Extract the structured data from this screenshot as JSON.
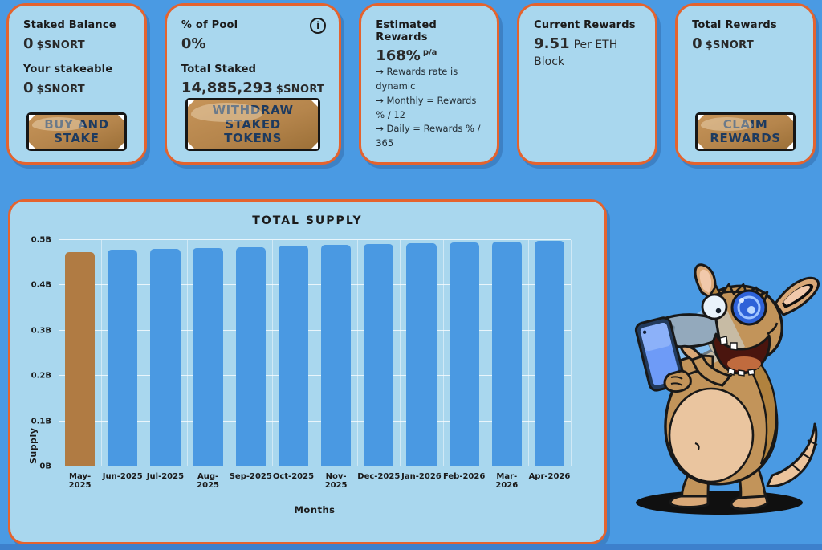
{
  "theme": {
    "page_bg": "#4a9ae3",
    "card_bg": "#a9d7ee",
    "card_border": "#e4632e",
    "button_wood": "#b5854c",
    "button_text": "#1d3a5f",
    "text_dark": "#1b1b1b",
    "footer_strip": "#3d80cc"
  },
  "cards": {
    "staked_balance": {
      "title": "Staked Balance",
      "value": "0",
      "unit": "$SNORT",
      "stakeable_label": "Your stakeable",
      "stakeable_value": "0",
      "stakeable_unit": "$SNORT",
      "button": "BUY AND STAKE"
    },
    "pool": {
      "title": "% of Pool",
      "value": "0%",
      "info_icon": "i",
      "total_staked_label": "Total Staked",
      "total_staked_value": "14,885,293",
      "total_staked_unit": "$SNORT",
      "button": "WITHDRAW STAKED TOKENS"
    },
    "estimated_rewards": {
      "title": "Estimated Rewards",
      "value": "168%",
      "suffix": "p/a",
      "notes": [
        "→ Rewards rate is dynamic",
        "→ Monthly = Rewards % / 12",
        "→ Daily = Rewards % / 365"
      ]
    },
    "current_rewards": {
      "title": "Current Rewards",
      "value": "9.51",
      "unit": "Per ETH Block"
    },
    "total_rewards": {
      "title": "Total Rewards",
      "value": "0",
      "unit": "$SNORT",
      "button": "CLAIM REWARDS"
    }
  },
  "chart_data": {
    "type": "bar",
    "title": "TOTAL SUPPLY",
    "xlabel": "Months",
    "ylabel": "Supply",
    "categories": [
      "May-2025",
      "Jun-2025",
      "Jul-2025",
      "Aug-2025",
      "Sep-2025",
      "Oct-2025",
      "Nov-2025",
      "Dec-2025",
      "Jan-2026",
      "Feb-2026",
      "Mar-2026",
      "Apr-2026"
    ],
    "values_billions": [
      0.474,
      0.478,
      0.48,
      0.482,
      0.484,
      0.487,
      0.489,
      0.491,
      0.493,
      0.495,
      0.497,
      0.499
    ],
    "ylim": [
      0,
      0.5
    ],
    "yticks": [
      "0B",
      "0.1B",
      "0.2B",
      "0.3B",
      "0.4B",
      "0.5B"
    ],
    "grid": true,
    "legend_position": "none",
    "bar_color_default": "#4a99e2",
    "bar_color_highlight": "#b07b43",
    "highlight_index": 0
  }
}
